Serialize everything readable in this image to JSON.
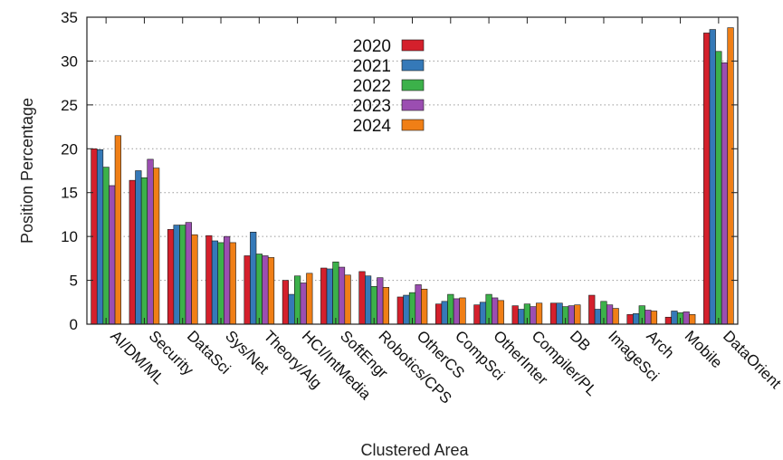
{
  "chart_data": {
    "type": "bar",
    "title": "",
    "xlabel": "Clustered Area",
    "ylabel": "Position Percentage",
    "ylim": [
      0,
      35
    ],
    "yticks": [
      0,
      5,
      10,
      15,
      20,
      25,
      30,
      35
    ],
    "grid": "horizontal dotted",
    "legend_position": "top-center",
    "categories": [
      "AI/DM/ML",
      "Security",
      "DataSci",
      "Sys/Net",
      "Theory/Alg",
      "HCI/IntMedia",
      "SoftEngr",
      "Robotics/CPS",
      "OtherCS",
      "CompSci",
      "OtherInter",
      "Compiler/PL",
      "DB",
      "ImageSci",
      "Arch",
      "Mobile",
      "DataOrient"
    ],
    "series": [
      {
        "name": "2020",
        "color": "#d4202c",
        "values": [
          20.0,
          16.4,
          10.8,
          10.1,
          7.8,
          5.0,
          6.4,
          6.0,
          3.1,
          2.3,
          2.2,
          2.1,
          2.4,
          3.3,
          1.1,
          0.8,
          33.2
        ]
      },
      {
        "name": "2021",
        "color": "#3579b8",
        "values": [
          19.9,
          17.5,
          11.3,
          9.5,
          10.5,
          3.4,
          6.3,
          5.5,
          3.3,
          2.6,
          2.5,
          1.7,
          2.4,
          1.7,
          1.2,
          1.5,
          33.6
        ]
      },
      {
        "name": "2022",
        "color": "#3cb14a",
        "values": [
          17.9,
          16.7,
          11.3,
          9.3,
          8.0,
          5.5,
          7.1,
          4.3,
          3.6,
          3.4,
          3.4,
          2.3,
          2.0,
          2.6,
          2.1,
          1.3,
          31.1
        ]
      },
      {
        "name": "2023",
        "color": "#9b4eb1",
        "values": [
          15.8,
          18.8,
          11.6,
          10.0,
          7.8,
          4.7,
          6.5,
          5.3,
          4.5,
          2.9,
          3.0,
          2.0,
          2.1,
          2.2,
          1.6,
          1.4,
          29.8
        ]
      },
      {
        "name": "2024",
        "color": "#f07f16",
        "values": [
          21.5,
          17.8,
          10.2,
          9.3,
          7.6,
          5.8,
          5.6,
          4.2,
          4.0,
          3.0,
          2.7,
          2.4,
          2.2,
          1.8,
          1.5,
          1.1,
          33.8
        ]
      }
    ]
  }
}
